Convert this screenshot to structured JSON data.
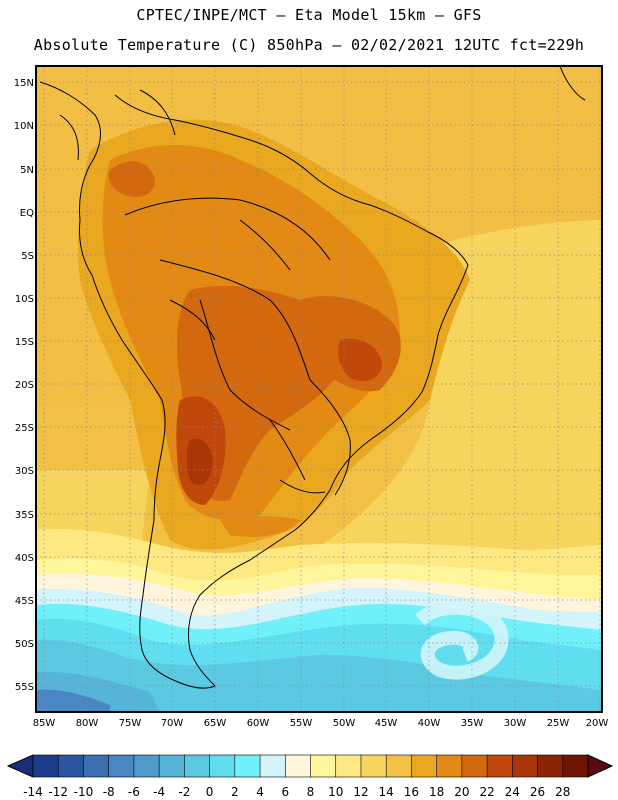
{
  "header": {
    "title_line1": "CPTEC/INPE/MCT —  Eta Model 15km — GFS",
    "title_line2": "Absolute Temperature (C) 850hPa — 02/02/2021 12UTC fct=229h"
  },
  "map": {
    "lat_labels": [
      "15N",
      "10N",
      "5N",
      "EQ",
      "5S",
      "10S",
      "15S",
      "20S",
      "25S",
      "30S",
      "35S",
      "40S",
      "45S",
      "50S",
      "55S"
    ],
    "lon_labels": [
      "85W",
      "80W",
      "75W",
      "70W",
      "65W",
      "60W",
      "55W",
      "50W",
      "45W",
      "40W",
      "35W",
      "30W",
      "25W",
      "20W"
    ]
  },
  "colorbar": {
    "labels": [
      "-14",
      "-12",
      "-10",
      "-8",
      "-6",
      "-4",
      "-2",
      "0",
      "2",
      "4",
      "6",
      "8",
      "10",
      "12",
      "14",
      "16",
      "18",
      "20",
      "22",
      "24",
      "26",
      "28"
    ],
    "colors": [
      "#1e3c8c",
      "#2a56a0",
      "#3a6fb4",
      "#4a86c4",
      "#4f9bcc",
      "#55b4d8",
      "#5cc9e2",
      "#60ddee",
      "#70f0fa",
      "#d2f4fa",
      "#fff5dc",
      "#fff59a",
      "#fde882",
      "#f7d45e",
      "#f2c044",
      "#eaa820",
      "#e28a14",
      "#d4680e",
      "#c0480a",
      "#a83606",
      "#8c2404",
      "#6e1403"
    ]
  }
}
